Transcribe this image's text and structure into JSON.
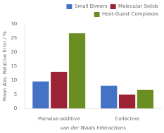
{
  "chart_data": {
    "type": "bar",
    "categories": [
      "Pairwise-additive",
      "Collective"
    ],
    "series": [
      {
        "name": "Small Dimers",
        "color": "#4472C4",
        "values": [
          9.6,
          8.1
        ]
      },
      {
        "name": "Molecular Solids",
        "color": "#9B2335",
        "values": [
          13.0,
          4.9
        ]
      },
      {
        "name": "Host-Guest Complexes",
        "color": "#6B8E23",
        "values": [
          26.7,
          6.6
        ]
      }
    ],
    "ylabel": "Mean Abs. Relative Error / %",
    "xlabel": "van der Waals Interactions",
    "ylim": [
      0,
      30
    ],
    "yticks": [
      0,
      5,
      10,
      15,
      20,
      25,
      30
    ],
    "grid": false,
    "legend": "upper right"
  }
}
